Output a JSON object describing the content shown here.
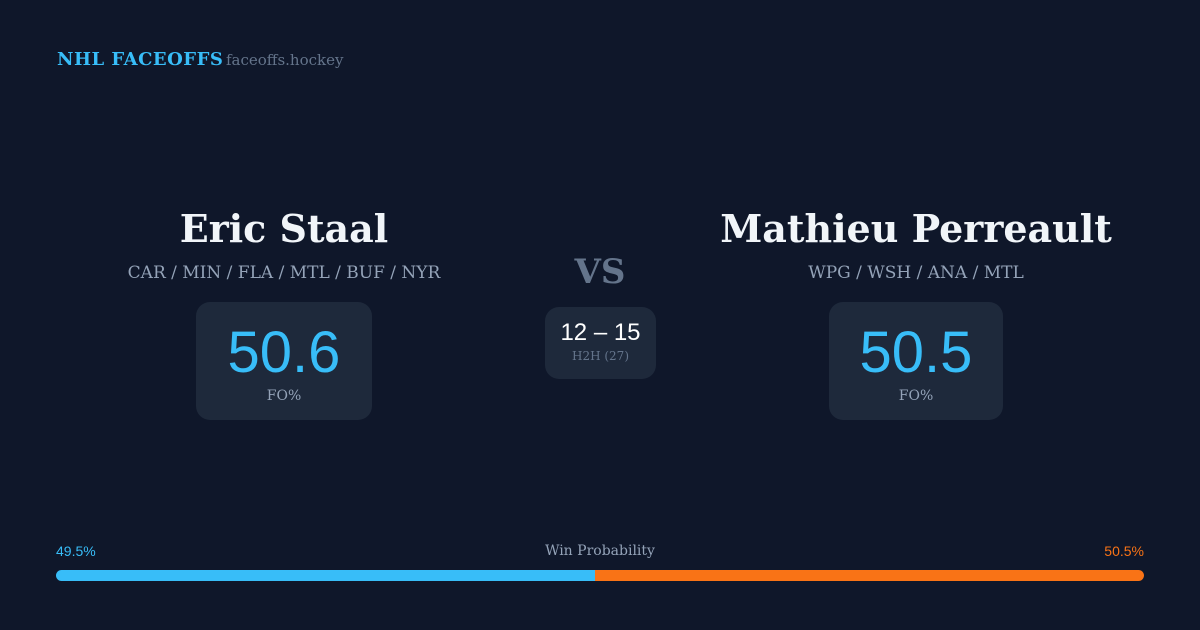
{
  "brand": {
    "title": "NHL FACEOFFS",
    "domain": "faceoffs.hockey"
  },
  "left": {
    "name": "Eric Staal",
    "teams": "CAR / MIN / FLA / MTL / BUF / NYR",
    "fo_pct": "50.6",
    "fo_label": "FO%"
  },
  "right": {
    "name": "Mathieu Perreault",
    "teams": "WPG / WSH / ANA / MTL",
    "fo_pct": "50.5",
    "fo_label": "FO%"
  },
  "vs": "VS",
  "h2h": {
    "score": "12 – 15",
    "label": "H2H (27)"
  },
  "win_probability": {
    "label": "Win Probability",
    "left_pct": "49.5%",
    "right_pct": "50.5%",
    "left_value": 49.5,
    "right_value": 50.5,
    "left_color": "#38bdf8",
    "right_color": "#f97316"
  }
}
